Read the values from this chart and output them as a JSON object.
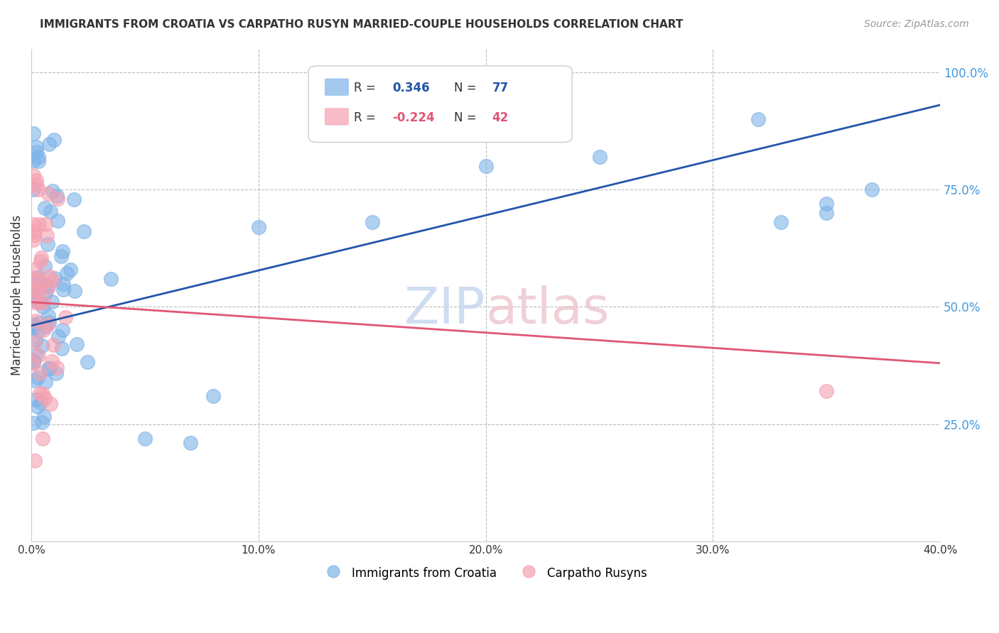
{
  "title": "IMMIGRANTS FROM CROATIA VS CARPATHO RUSYN MARRIED-COUPLE HOUSEHOLDS CORRELATION CHART",
  "source": "Source: ZipAtlas.com",
  "ylabel": "Married-couple Households",
  "xlim": [
    0.0,
    0.4
  ],
  "ylim": [
    0.0,
    1.05
  ],
  "xtick_labels": [
    "0.0%",
    "10.0%",
    "20.0%",
    "30.0%",
    "40.0%"
  ],
  "xtick_vals": [
    0.0,
    0.1,
    0.2,
    0.3,
    0.4
  ],
  "ytick_labels_right": [
    "25.0%",
    "50.0%",
    "75.0%",
    "100.0%"
  ],
  "ytick_vals_right": [
    0.25,
    0.5,
    0.75,
    1.0
  ],
  "legend1_R": "0.346",
  "legend1_N": "77",
  "legend2_R": "-0.224",
  "legend2_N": "42",
  "blue_color": "#7EB3E8",
  "pink_color": "#F4A0B0",
  "blue_line_color": "#2255AA",
  "pink_line_color": "#E05575",
  "blue_line_x": [
    0.0,
    0.4
  ],
  "blue_line_y": [
    0.46,
    0.93
  ],
  "pink_line_x": [
    0.0,
    0.4
  ],
  "pink_line_y": [
    0.51,
    0.38
  ]
}
